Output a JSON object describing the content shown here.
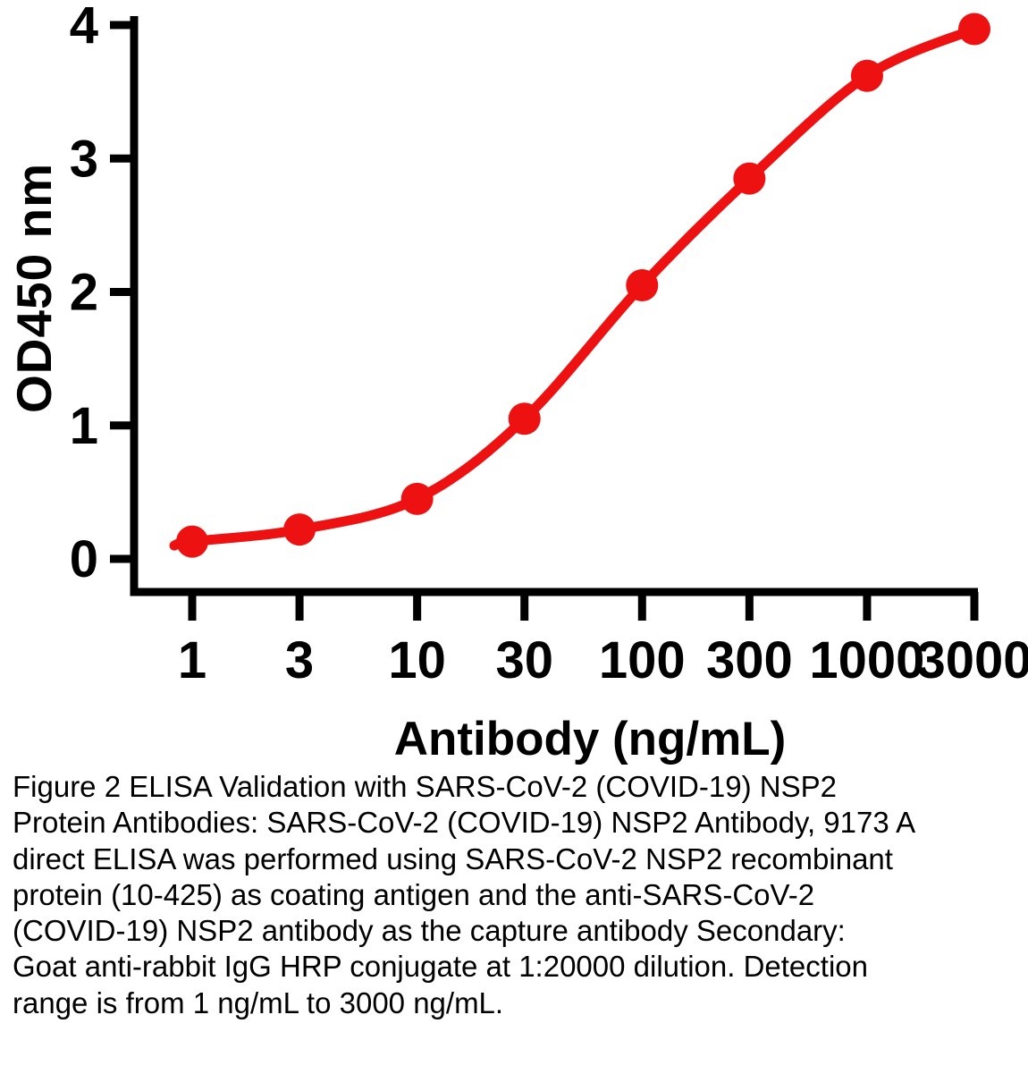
{
  "chart_data": {
    "type": "line",
    "title": "",
    "xlabel": "Antibody (ng/mL)",
    "ylabel": "OD450 nm",
    "x_scale": "log",
    "xlim": [
      1,
      3000
    ],
    "ylim": [
      0,
      4
    ],
    "x_ticks": [
      1,
      3,
      10,
      30,
      100,
      300,
      1000,
      3000
    ],
    "y_ticks": [
      0,
      1,
      2,
      3,
      4
    ],
    "grid": false,
    "legend": "none",
    "axis_color": "#000000",
    "series": [
      {
        "x": [
          1,
          3,
          10,
          30,
          100,
          300,
          1000,
          3000
        ],
        "y": [
          0.13,
          0.22,
          0.45,
          1.05,
          2.05,
          2.85,
          3.62,
          3.97
        ],
        "color": "#ee1111",
        "marker": "circle",
        "curve": "sigmoid-fit"
      }
    ]
  },
  "caption": {
    "text": "Figure 2 ELISA Validation with SARS-CoV-2 (COVID-19) NSP2 Protein Antibodies: SARS-CoV-2 (COVID-19) NSP2 Antibody, 9173 A direct ELISA was performed using SARS-CoV-2 NSP2 recombinant protein (10-425) as coating antigen and the anti-SARS-CoV-2 (COVID-19) NSP2 antibody as the capture antibody Secondary: Goat anti-rabbit IgG HRP conjugate at 1:20000 dilution. Detection range is from 1 ng/mL to 3000 ng/mL."
  }
}
